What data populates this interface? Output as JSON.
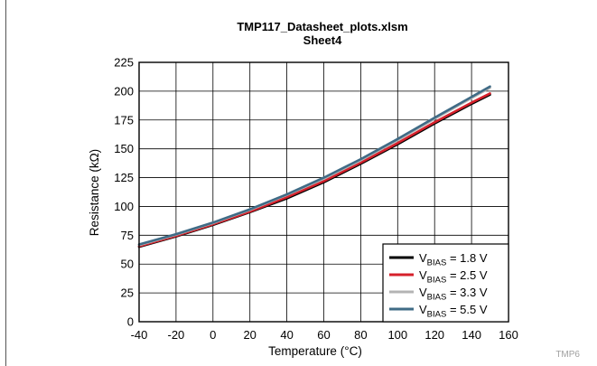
{
  "chart_data": {
    "type": "line",
    "title": "TMP117_Datasheet_plots.xlsm",
    "subtitle": "Sheet4",
    "xlabel": "Temperature (°C)",
    "ylabel": "Resistance (kΩ)",
    "xlim": [
      -40,
      160
    ],
    "ylim": [
      0,
      225
    ],
    "xticks": [
      -40,
      -20,
      0,
      20,
      40,
      60,
      80,
      100,
      120,
      140,
      160
    ],
    "yticks": [
      0,
      25,
      50,
      75,
      100,
      125,
      150,
      175,
      200,
      225
    ],
    "grid": true,
    "legend_position": "bottom-right",
    "series": [
      {
        "label_main": "V",
        "label_sub": "BIAS",
        "label_rest": " = 1.8 V",
        "color": "#000000",
        "x": [
          -40,
          -20,
          0,
          20,
          40,
          60,
          80,
          100,
          120,
          140,
          150
        ],
        "y": [
          65,
          74,
          84,
          95,
          107,
          121,
          137,
          154,
          172,
          189,
          197
        ]
      },
      {
        "label_main": "V",
        "label_sub": "BIAS",
        "label_rest": " = 2.5 V",
        "color": "#d6202b",
        "x": [
          -40,
          -20,
          0,
          20,
          40,
          60,
          80,
          100,
          120,
          140,
          150
        ],
        "y": [
          65.5,
          74.5,
          84.5,
          95.5,
          108,
          122,
          138,
          155,
          173,
          190,
          198
        ]
      },
      {
        "label_main": "V",
        "label_sub": "BIAS",
        "label_rest": " = 3.3 V",
        "color": "#b4b4b4",
        "x": [
          -40,
          -20,
          0,
          20,
          40,
          60,
          80,
          100,
          120,
          140,
          150
        ],
        "y": [
          66.5,
          75.5,
          85.5,
          97,
          110,
          124,
          140,
          157.5,
          176,
          194,
          203
        ]
      },
      {
        "label_main": "V",
        "label_sub": "BIAS",
        "label_rest": " = 5.5 V",
        "color": "#3f6b86",
        "x": [
          -40,
          -20,
          0,
          20,
          40,
          60,
          80,
          100,
          120,
          140,
          150
        ],
        "y": [
          67,
          76,
          86,
          97.5,
          110.5,
          125,
          141,
          158.5,
          177,
          195,
          204
        ]
      }
    ],
    "corner_label": "TMP6"
  }
}
